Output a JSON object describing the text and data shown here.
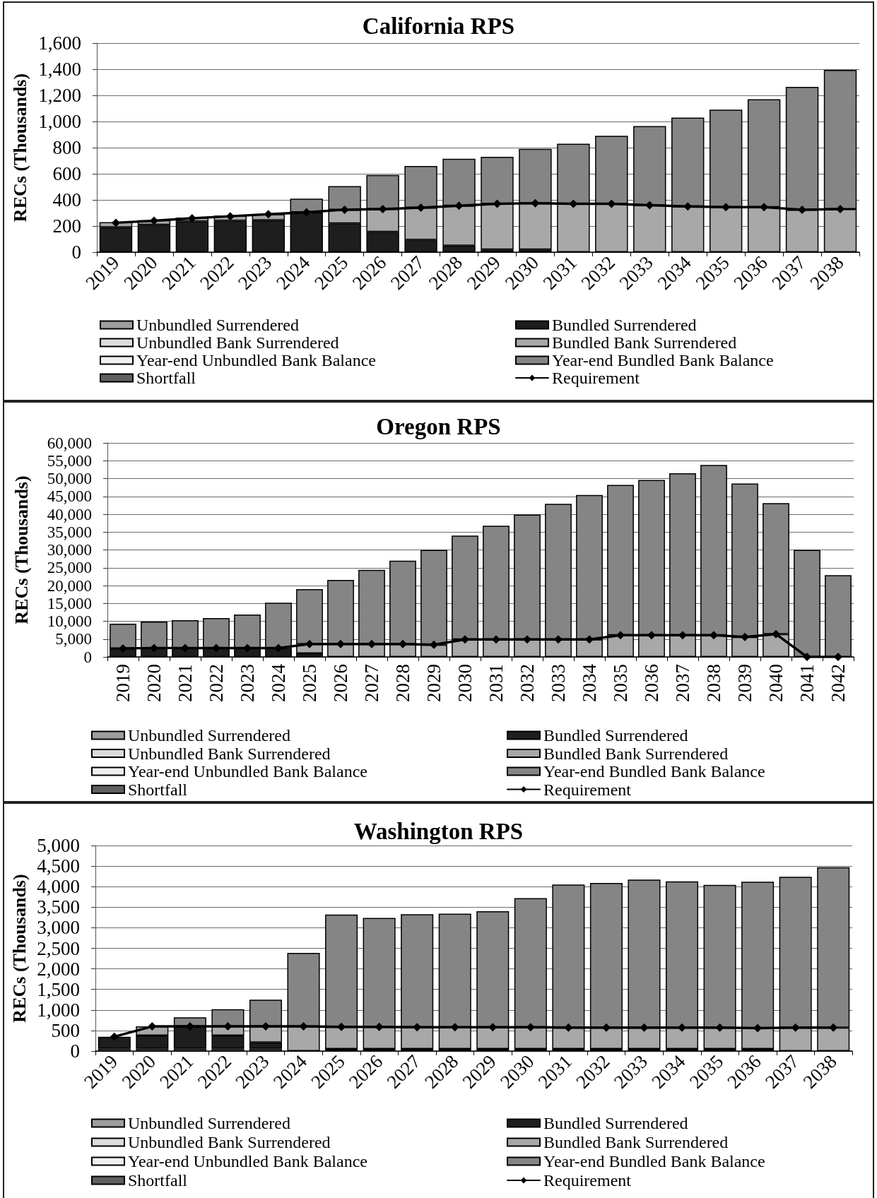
{
  "chart_data": [
    {
      "type": "bar",
      "title": "California RPS",
      "ylabel": "RECs (Thousands)",
      "stacked": true,
      "grid": "y",
      "legend": "bottom",
      "categories": [
        "2019",
        "2020",
        "2021",
        "2022",
        "2023",
        "2024",
        "2025",
        "2026",
        "2027",
        "2028",
        "2029",
        "2030",
        "2031",
        "2032",
        "2033",
        "2034",
        "2035",
        "2036",
        "2037",
        "2038"
      ],
      "ylim": [
        0,
        1600
      ],
      "yticks": [
        0,
        200,
        400,
        600,
        800,
        {
          "value": 1000,
          "label": "1,000"
        },
        {
          "value": 1200,
          "label": "1,200"
        },
        {
          "value": 1400,
          "label": "1,400"
        },
        {
          "value": 1600,
          "label": "1,600"
        }
      ],
      "series": [
        {
          "name": "Unbundled Surrendered",
          "color": "#9e9e9e",
          "values": [
            null,
            null,
            null,
            null,
            null,
            null,
            null,
            null,
            null,
            null,
            null,
            null,
            null,
            null,
            null,
            null,
            null,
            null,
            null,
            null
          ]
        },
        {
          "name": "Bundled Surrendered",
          "color": "#1e1e1e",
          "values": [
            190,
            210,
            235,
            240,
            245,
            305,
            220,
            155,
            95,
            50,
            20,
            20,
            null,
            null,
            null,
            null,
            null,
            null,
            null,
            null
          ]
        },
        {
          "name": "Unbundled Bank Surrendered",
          "color": "#dcdcdc",
          "values": [
            null,
            null,
            null,
            null,
            null,
            null,
            null,
            null,
            null,
            null,
            null,
            null,
            null,
            null,
            null,
            null,
            null,
            null,
            null,
            null
          ]
        },
        {
          "name": "Bundled Bank Surrendered",
          "color": "#a8a8a8",
          "values": [
            40,
            35,
            30,
            40,
            45,
            null,
            105,
            175,
            245,
            305,
            350,
            355,
            370,
            370,
            360,
            350,
            345,
            345,
            325,
            330
          ]
        },
        {
          "name": "Year-end Unbundled Bank Balance",
          "color": "#efefef",
          "values": [
            null,
            null,
            null,
            null,
            null,
            null,
            null,
            null,
            null,
            null,
            null,
            null,
            null,
            null,
            null,
            null,
            null,
            null,
            null,
            null
          ]
        },
        {
          "name": "Year-end Bundled Bank Balance",
          "color": "#858585",
          "values": [
            null,
            null,
            null,
            null,
            null,
            105,
            180,
            260,
            320,
            360,
            360,
            415,
            460,
            520,
            605,
            680,
            745,
            825,
            940,
            1065
          ]
        },
        {
          "name": "Shortfall",
          "color": "#606060",
          "values": [
            null,
            null,
            null,
            null,
            null,
            null,
            null,
            null,
            null,
            null,
            null,
            null,
            null,
            null,
            null,
            null,
            null,
            null,
            null,
            null
          ]
        },
        {
          "name": "Requirement",
          "type": "line",
          "marker": "diamond",
          "color": "#000000",
          "values": [
            225,
            240,
            260,
            275,
            290,
            305,
            325,
            330,
            340,
            355,
            370,
            375,
            370,
            370,
            360,
            350,
            345,
            345,
            325,
            330
          ]
        }
      ]
    },
    {
      "type": "bar",
      "title": "Oregon RPS",
      "ylabel": "RECs (Thousands)",
      "stacked": true,
      "grid": "y",
      "legend": "bottom",
      "categories": [
        "2019",
        "2020",
        "2021",
        "2022",
        "2023",
        "2024",
        "2025",
        "2026",
        "2027",
        "2028",
        "2029",
        "2030",
        "2031",
        "2032",
        "2033",
        "2034",
        "2035",
        "2036",
        "2037",
        "2038",
        "2039",
        "2040",
        "2041",
        "2042"
      ],
      "ylim": [
        0,
        60000
      ],
      "yticks": [
        0,
        {
          "value": 5000,
          "label": "5,000"
        },
        {
          "value": 10000,
          "label": "10,000"
        },
        {
          "value": 15000,
          "label": "15,000"
        },
        {
          "value": 20000,
          "label": "20,000"
        },
        {
          "value": 25000,
          "label": "25,000"
        },
        {
          "value": 30000,
          "label": "30,000"
        },
        {
          "value": 35000,
          "label": "35,000"
        },
        {
          "value": 40000,
          "label": "40,000"
        },
        {
          "value": 45000,
          "label": "45,000"
        },
        {
          "value": 50000,
          "label": "50,000"
        },
        {
          "value": 55000,
          "label": "55,000"
        },
        {
          "value": 60000,
          "label": "60,000"
        }
      ],
      "series": [
        {
          "name": "Unbundled Surrendered",
          "color": "#9e9e9e",
          "values": [
            null,
            null,
            null,
            null,
            null,
            null,
            null,
            null,
            null,
            null,
            null,
            null,
            null,
            null,
            null,
            null,
            null,
            null,
            null,
            null,
            null,
            null,
            null,
            null
          ]
        },
        {
          "name": "Bundled Surrendered",
          "color": "#1e1e1e",
          "values": [
            2400,
            2500,
            2500,
            2500,
            2500,
            2500,
            1000,
            null,
            null,
            null,
            null,
            null,
            null,
            null,
            null,
            null,
            null,
            null,
            null,
            null,
            null,
            null,
            null,
            null
          ]
        },
        {
          "name": "Unbundled Bank Surrendered",
          "color": "#dcdcdc",
          "values": [
            null,
            null,
            null,
            null,
            null,
            null,
            null,
            null,
            null,
            null,
            null,
            null,
            null,
            null,
            null,
            null,
            null,
            null,
            null,
            null,
            null,
            null,
            null,
            null
          ]
        },
        {
          "name": "Bundled Bank Surrendered",
          "color": "#a8a8a8",
          "values": [
            null,
            null,
            null,
            null,
            null,
            null,
            2600,
            3600,
            3600,
            3600,
            3400,
            4900,
            4900,
            4900,
            4900,
            4900,
            6100,
            6100,
            6100,
            6100,
            5600,
            6400,
            null,
            null
          ]
        },
        {
          "name": "Year-end Unbundled Bank Balance",
          "color": "#efefef",
          "values": [
            null,
            null,
            null,
            null,
            null,
            null,
            null,
            null,
            null,
            null,
            null,
            null,
            null,
            null,
            null,
            null,
            null,
            null,
            null,
            null,
            null,
            null,
            null,
            null
          ]
        },
        {
          "name": "Year-end Bundled Bank Balance",
          "color": "#858585",
          "values": [
            6900,
            7400,
            7800,
            8400,
            9400,
            12700,
            15400,
            18000,
            20800,
            23400,
            26600,
            29100,
            31900,
            35000,
            38000,
            40500,
            42100,
            43500,
            45400,
            47700,
            43000,
            36700,
            30000,
            22900
          ]
        },
        {
          "name": "Shortfall",
          "color": "#606060",
          "values": [
            null,
            null,
            null,
            null,
            null,
            null,
            null,
            null,
            null,
            null,
            null,
            null,
            null,
            null,
            null,
            null,
            null,
            null,
            null,
            null,
            null,
            null,
            null,
            null
          ]
        },
        {
          "name": "Requirement",
          "type": "line",
          "marker": "diamond",
          "color": "#000000",
          "values": [
            2400,
            2500,
            2500,
            2500,
            2500,
            2500,
            3600,
            3600,
            3600,
            3600,
            3400,
            4900,
            4900,
            4900,
            4900,
            4900,
            6100,
            6100,
            6100,
            6100,
            5600,
            6400,
            0,
            0
          ]
        }
      ]
    },
    {
      "type": "bar",
      "title": "Washington RPS",
      "ylabel": "RECs (Thousands)",
      "stacked": true,
      "grid": "y",
      "legend": "bottom",
      "categories": [
        "2019",
        "2020",
        "2021",
        "2022",
        "2023",
        "2024",
        "2025",
        "2026",
        "2027",
        "2028",
        "2029",
        "2030",
        "2031",
        "2032",
        "2033",
        "2034",
        "2035",
        "2036",
        "2037",
        "2038"
      ],
      "ylim": [
        0,
        5000
      ],
      "yticks": [
        0,
        500,
        {
          "value": 1000,
          "label": "1,000"
        },
        {
          "value": 1500,
          "label": "1,500"
        },
        {
          "value": 2000,
          "label": "2,000"
        },
        {
          "value": 2500,
          "label": "2,500"
        },
        {
          "value": 3000,
          "label": "3,000"
        },
        {
          "value": 3500,
          "label": "3,500"
        },
        {
          "value": 4000,
          "label": "4,000"
        },
        {
          "value": 4500,
          "label": "4,500"
        },
        {
          "value": 5000,
          "label": "5,000"
        }
      ],
      "series": [
        {
          "name": "Unbundled Surrendered",
          "color": "#9e9e9e",
          "values": [
            60,
            60,
            60,
            60,
            60,
            null,
            null,
            null,
            null,
            null,
            null,
            null,
            null,
            null,
            null,
            null,
            null,
            null,
            null,
            null
          ]
        },
        {
          "name": "Bundled Surrendered",
          "color": "#1e1e1e",
          "values": [
            290,
            320,
            540,
            320,
            150,
            null,
            null,
            null,
            null,
            null,
            null,
            null,
            null,
            null,
            null,
            null,
            null,
            null,
            null,
            null
          ]
        },
        {
          "name": "Unbundled Bank Surrendered",
          "color": "#dcdcdc",
          "values": [
            null,
            null,
            null,
            null,
            null,
            null,
            50,
            50,
            50,
            50,
            50,
            50,
            50,
            50,
            50,
            50,
            50,
            50,
            null,
            null
          ]
        },
        {
          "name": "Bundled Bank Surrendered",
          "color": "#a8a8a8",
          "values": [
            null,
            220,
            null,
            220,
            390,
            600,
            540,
            540,
            530,
            530,
            530,
            530,
            520,
            520,
            520,
            520,
            520,
            510,
            570,
            570
          ]
        },
        {
          "name": "Year-end Unbundled Bank Balance",
          "color": "#efefef",
          "values": [
            null,
            null,
            null,
            null,
            null,
            null,
            null,
            null,
            null,
            null,
            null,
            null,
            null,
            null,
            null,
            null,
            null,
            null,
            null,
            null
          ]
        },
        {
          "name": "Year-end Bundled Bank Balance",
          "color": "#858585",
          "values": [
            null,
            null,
            220,
            420,
            650,
            1790,
            2730,
            2650,
            2750,
            2760,
            2820,
            3140,
            3480,
            3520,
            3600,
            3560,
            3470,
            3560,
            3670,
            3900
          ]
        },
        {
          "name": "Shortfall",
          "color": "#606060",
          "values": [
            null,
            null,
            null,
            null,
            null,
            null,
            null,
            null,
            null,
            null,
            null,
            null,
            null,
            null,
            null,
            null,
            null,
            null,
            null,
            null
          ]
        },
        {
          "name": "Requirement",
          "type": "line",
          "marker": "diamond",
          "color": "#000000",
          "values": [
            350,
            600,
            600,
            600,
            600,
            600,
            590,
            590,
            580,
            580,
            580,
            580,
            570,
            570,
            570,
            570,
            570,
            560,
            570,
            570
          ]
        }
      ]
    }
  ]
}
